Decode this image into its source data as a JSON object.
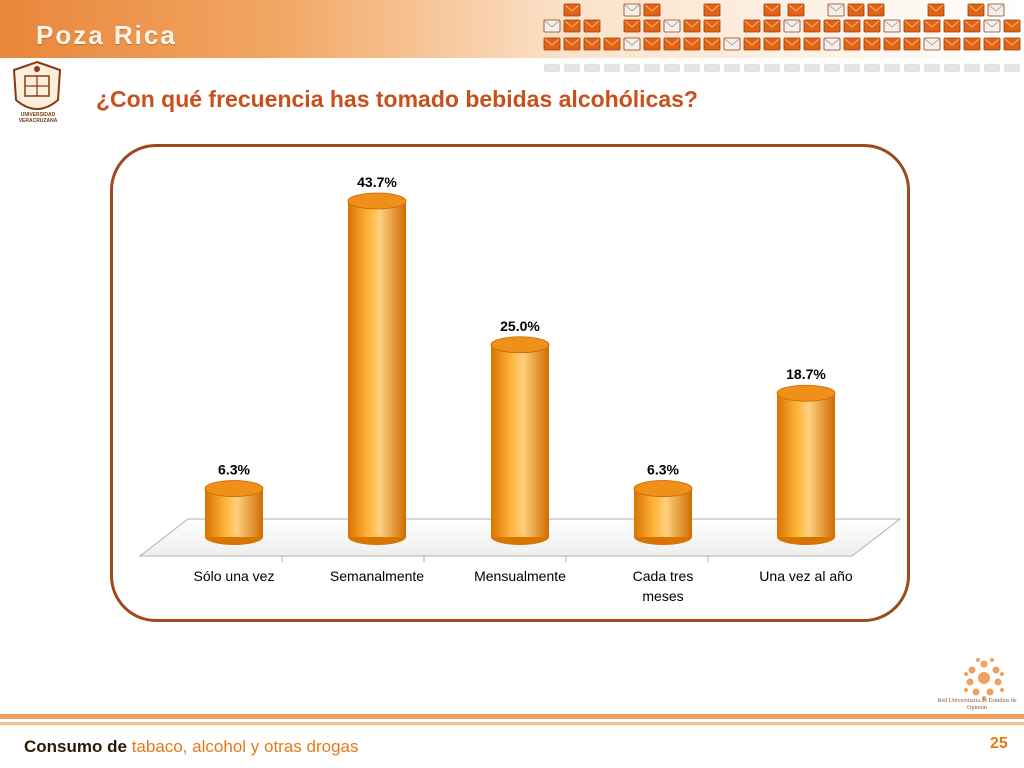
{
  "header": {
    "city": "Poza Rica"
  },
  "logos": {
    "university_caption": "UNIVERSIDAD VERACRUZANA",
    "network_caption": "Red Universitaria de Estudios de Opinión"
  },
  "slide": {
    "title": "¿Con qué frecuencia has tomado bebidas alcohólicas?"
  },
  "chart_data": {
    "type": "bar",
    "title": "",
    "xlabel": "",
    "ylabel": "",
    "categories": [
      "Sólo una vez",
      "Semanalmente",
      "Mensualmente",
      "Cada tres meses",
      "Una vez al año"
    ],
    "values": [
      6.3,
      43.7,
      25.0,
      6.3,
      18.7
    ],
    "value_labels": [
      "6.3%",
      "43.7%",
      "25.0%",
      "6.3%",
      "18.7%"
    ],
    "unit": "%",
    "ylim": [
      0,
      45
    ],
    "grid": false,
    "legend": "none",
    "colors": {
      "bar": "#f5a020",
      "bar_dark": "#d87400",
      "bar_light": "#ffd080"
    }
  },
  "footer": {
    "title_dark": "Consumo de",
    "title_accent": "tabaco, alcohol y otras drogas",
    "page_number": "25"
  }
}
